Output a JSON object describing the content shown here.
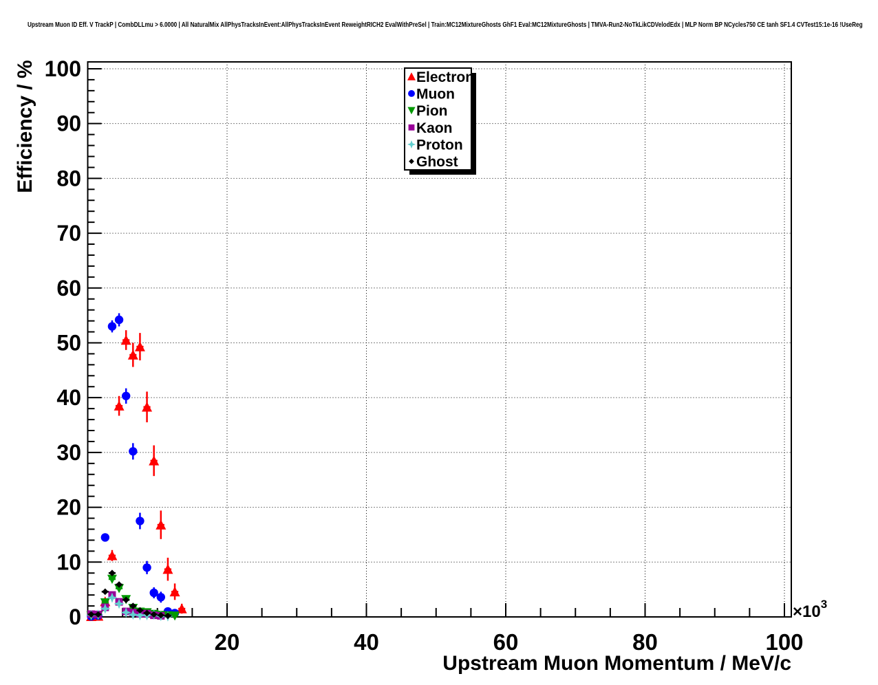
{
  "chart_data": {
    "type": "scatter",
    "title": "Upstream Muon ID Eff. V TrackP | CombDLLmu > 6.0000 | All NaturalMix AllPhysTracksInEvent:AllPhysTracksInEvent ReweightRICH2 EvalWithPreSel | Train:MC12MixtureGhosts GhF1 Eval:MC12MixtureGhosts | TMVA-Run2-NoTkLikCDVelodEdx | MLP Norm BP NCycles750 CE tanh SF1.4 CVTest15:1e-16 !UseReg",
    "xlabel": "Upstream Muon Momentum / MeV/c",
    "ylabel": "Efficiency / %",
    "x_scale_exponent": {
      "base": "×10",
      "power": "3"
    },
    "xlim": [
      0,
      101
    ],
    "ylim": [
      0,
      101.25
    ],
    "x_major_ticks": [
      20,
      40,
      60,
      80,
      100
    ],
    "x_minor_step": 5,
    "y_major_ticks": [
      0,
      10,
      20,
      30,
      40,
      50,
      60,
      70,
      80,
      90,
      100
    ],
    "y_minor_step": 2,
    "grid": "dotted",
    "legend": {
      "position": "top-center",
      "entries": [
        "Electron",
        "Muon",
        "Pion",
        "Kaon",
        "Proton",
        "Ghost"
      ]
    },
    "series": [
      {
        "name": "Electron",
        "color": "#ff0000",
        "marker": "triangle-up",
        "marker_size": 7.5,
        "xerr": 0.5,
        "points": [
          [
            0.5,
            0.1,
            0.1
          ],
          [
            1.5,
            0.15,
            0.12
          ],
          [
            2.5,
            2.8,
            0.5
          ],
          [
            3.5,
            11.2,
            1.0
          ],
          [
            4.5,
            38.5,
            1.8
          ],
          [
            5.5,
            50.5,
            1.8
          ],
          [
            6.5,
            47.8,
            2.2
          ],
          [
            7.5,
            49.3,
            2.5
          ],
          [
            8.5,
            38.3,
            2.8
          ],
          [
            9.5,
            28.5,
            2.8
          ],
          [
            10.5,
            16.8,
            2.6
          ],
          [
            11.5,
            8.7,
            2.1
          ],
          [
            12.5,
            4.6,
            1.5
          ],
          [
            13.5,
            1.5,
            0.9
          ]
        ]
      },
      {
        "name": "Muon",
        "color": "#0000ff",
        "marker": "circle",
        "marker_size": 6.2,
        "xerr": 0.5,
        "points": [
          [
            0.5,
            0.1,
            0.08
          ],
          [
            1.5,
            0.25,
            0.12
          ],
          [
            2.5,
            14.5,
            0.7
          ],
          [
            3.5,
            53.0,
            1.1
          ],
          [
            4.5,
            54.2,
            1.2
          ],
          [
            5.5,
            40.3,
            1.4
          ],
          [
            6.5,
            30.2,
            1.5
          ],
          [
            7.5,
            17.5,
            1.5
          ],
          [
            8.5,
            9.0,
            1.2
          ],
          [
            9.5,
            4.4,
            1.0
          ],
          [
            10.5,
            3.6,
            1.0
          ],
          [
            11.5,
            1.0,
            0.6
          ],
          [
            12.5,
            0.7,
            0.5
          ]
        ]
      },
      {
        "name": "Pion",
        "color": "#009900",
        "marker": "triangle-down",
        "marker_size": 7,
        "xerr": 0.5,
        "points": [
          [
            0.5,
            0.2,
            0.1
          ],
          [
            1.5,
            0.3,
            0.12
          ],
          [
            2.5,
            2.6,
            0.3
          ],
          [
            3.5,
            6.9,
            0.5
          ],
          [
            4.5,
            5.2,
            0.45
          ],
          [
            5.5,
            3.2,
            0.4
          ],
          [
            6.5,
            1.6,
            0.3
          ],
          [
            7.5,
            0.9,
            0.25
          ],
          [
            8.5,
            0.8,
            0.25
          ],
          [
            9.5,
            0.5,
            0.2
          ],
          [
            10.5,
            0.3,
            0.15
          ],
          [
            11.5,
            0.25,
            0.15
          ],
          [
            12.5,
            0.2,
            0.12
          ]
        ]
      },
      {
        "name": "Kaon",
        "color": "#990099",
        "marker": "square",
        "marker_size": 5.5,
        "xerr": 0.5,
        "points": [
          [
            0.5,
            0.5,
            0.2
          ],
          [
            1.5,
            0.45,
            0.18
          ],
          [
            2.5,
            1.75,
            0.3
          ],
          [
            3.5,
            4.0,
            0.45
          ],
          [
            4.5,
            2.75,
            0.4
          ],
          [
            5.5,
            1.0,
            0.25
          ],
          [
            6.5,
            0.8,
            0.22
          ],
          [
            7.5,
            0.6,
            0.2
          ],
          [
            8.5,
            0.6,
            0.2
          ],
          [
            9.5,
            0.3,
            0.15
          ],
          [
            10.5,
            0.2,
            0.12
          ]
        ]
      },
      {
        "name": "Proton",
        "color": "#62cfcf",
        "marker": "star4",
        "marker_size": 7.5,
        "xerr": 0.5,
        "points": [
          [
            0.5,
            0.35,
            0.15
          ],
          [
            1.5,
            0.4,
            0.15
          ],
          [
            2.5,
            1.5,
            0.25
          ],
          [
            3.5,
            3.5,
            0.4
          ],
          [
            4.5,
            2.4,
            0.35
          ],
          [
            5.5,
            0.8,
            0.2
          ],
          [
            6.5,
            0.4,
            0.15
          ],
          [
            7.5,
            0.3,
            0.12
          ],
          [
            8.5,
            0.3,
            0.12
          ],
          [
            9.5,
            0.4,
            0.15
          ],
          [
            10.5,
            0.15,
            0.1
          ],
          [
            11.5,
            0.1,
            0.08
          ]
        ]
      },
      {
        "name": "Ghost",
        "color": "#000000",
        "marker": "diamond",
        "marker_size": 4.8,
        "xerr": 0.5,
        "points": [
          [
            0.5,
            0.45,
            0.1
          ],
          [
            1.5,
            0.45,
            0.1
          ],
          [
            2.5,
            4.6,
            0.3
          ],
          [
            3.5,
            8.0,
            0.4
          ],
          [
            4.5,
            5.9,
            0.35
          ],
          [
            5.5,
            3.1,
            0.3
          ],
          [
            6.5,
            2.0,
            0.25
          ],
          [
            7.5,
            1.2,
            0.2
          ],
          [
            8.5,
            0.7,
            0.15
          ],
          [
            9.5,
            0.45,
            0.12
          ],
          [
            10.5,
            0.3,
            0.1
          ],
          [
            11.5,
            0.2,
            0.1
          ]
        ]
      }
    ]
  }
}
